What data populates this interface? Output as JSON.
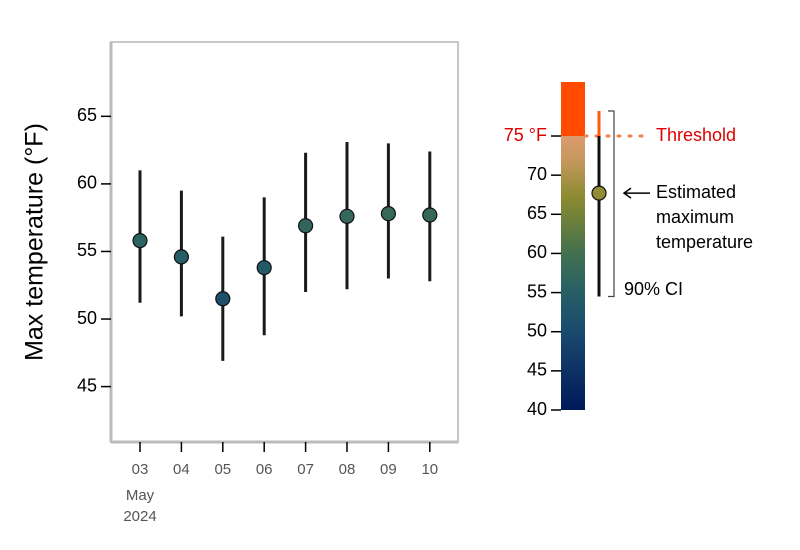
{
  "chart_data": {
    "type": "errorbar",
    "y_label": "Max temperature (°F)",
    "categories": [
      "03",
      "04",
      "05",
      "06",
      "07",
      "08",
      "09",
      "10"
    ],
    "date_label": [
      "May",
      "2024"
    ],
    "values": [
      55.8,
      54.6,
      51.5,
      53.8,
      56.9,
      57.6,
      57.8,
      57.7
    ],
    "lower": [
      51.2,
      50.2,
      46.9,
      48.8,
      52.0,
      52.2,
      53.0,
      52.8
    ],
    "upper": [
      61.0,
      59.5,
      56.1,
      59.0,
      62.3,
      63.1,
      63.0,
      62.4
    ],
    "ylim": [
      40.9,
      70.5
    ],
    "yticks": [
      45,
      50,
      55,
      60,
      65
    ],
    "colorscale": [
      [
        40,
        "#00195a"
      ],
      [
        50,
        "#1a4a6e"
      ],
      [
        55,
        "#275f66"
      ],
      [
        60,
        "#42704f"
      ],
      [
        67,
        "#8a8a30"
      ],
      [
        72,
        "#c6985e"
      ],
      [
        75,
        "#dc9a70"
      ],
      [
        75,
        "#ff4a00"
      ],
      [
        81.9,
        "#ff4a00"
      ]
    ],
    "legend": {
      "ylim": [
        40,
        81.9
      ],
      "ticks": [
        40,
        45,
        50,
        55,
        60,
        65,
        70,
        {
          "value": 75,
          "label": "75 °F"
        }
      ],
      "threshold": 75,
      "threshold_label": "Threshold",
      "estimate": 67.7,
      "ci": [
        54.5,
        78.2
      ],
      "estimate_label": [
        "Estimated",
        "maximum",
        "temperature"
      ],
      "ci_label": "90% CI"
    }
  }
}
